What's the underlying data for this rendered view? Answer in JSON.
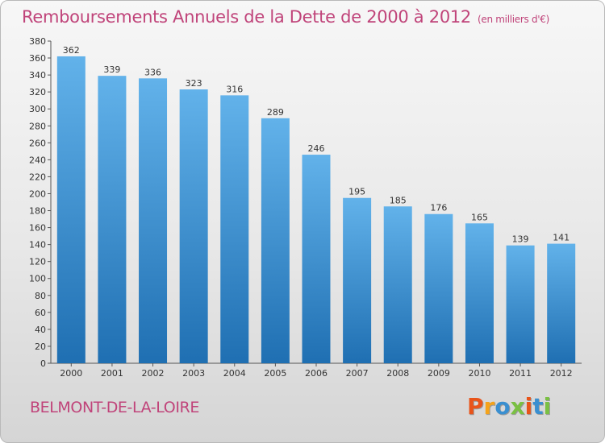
{
  "header": {
    "title": "Remboursements Annuels de la Dette de 2000 à 2012",
    "unit_note": "(en milliers d'€)"
  },
  "footer": {
    "town": "BELMONT-DE-LA-LOIRE",
    "logo_text": "Proxiti",
    "logo_colors": [
      "#e8541a",
      "#f5a31a",
      "#3a8fd0",
      "#7ac043",
      "#e8541a",
      "#3a8fd0",
      "#7ac043"
    ]
  },
  "colors": {
    "title": "#c0447a",
    "bar_top": "#62b2ea",
    "bar_bottom": "#1f6fb2"
  },
  "chart_data": {
    "type": "bar",
    "title": "Remboursements Annuels de la Dette de 2000 à 2012",
    "categories": [
      "2000",
      "2001",
      "2002",
      "2003",
      "2004",
      "2005",
      "2006",
      "2007",
      "2008",
      "2009",
      "2010",
      "2011",
      "2012"
    ],
    "values": [
      362,
      339,
      336,
      323,
      316,
      289,
      246,
      195,
      185,
      176,
      165,
      139,
      141
    ],
    "ylim": [
      0,
      380
    ],
    "ytick_step": 20,
    "xlabel": "",
    "ylabel": "",
    "grid": false,
    "data_labels": true
  }
}
